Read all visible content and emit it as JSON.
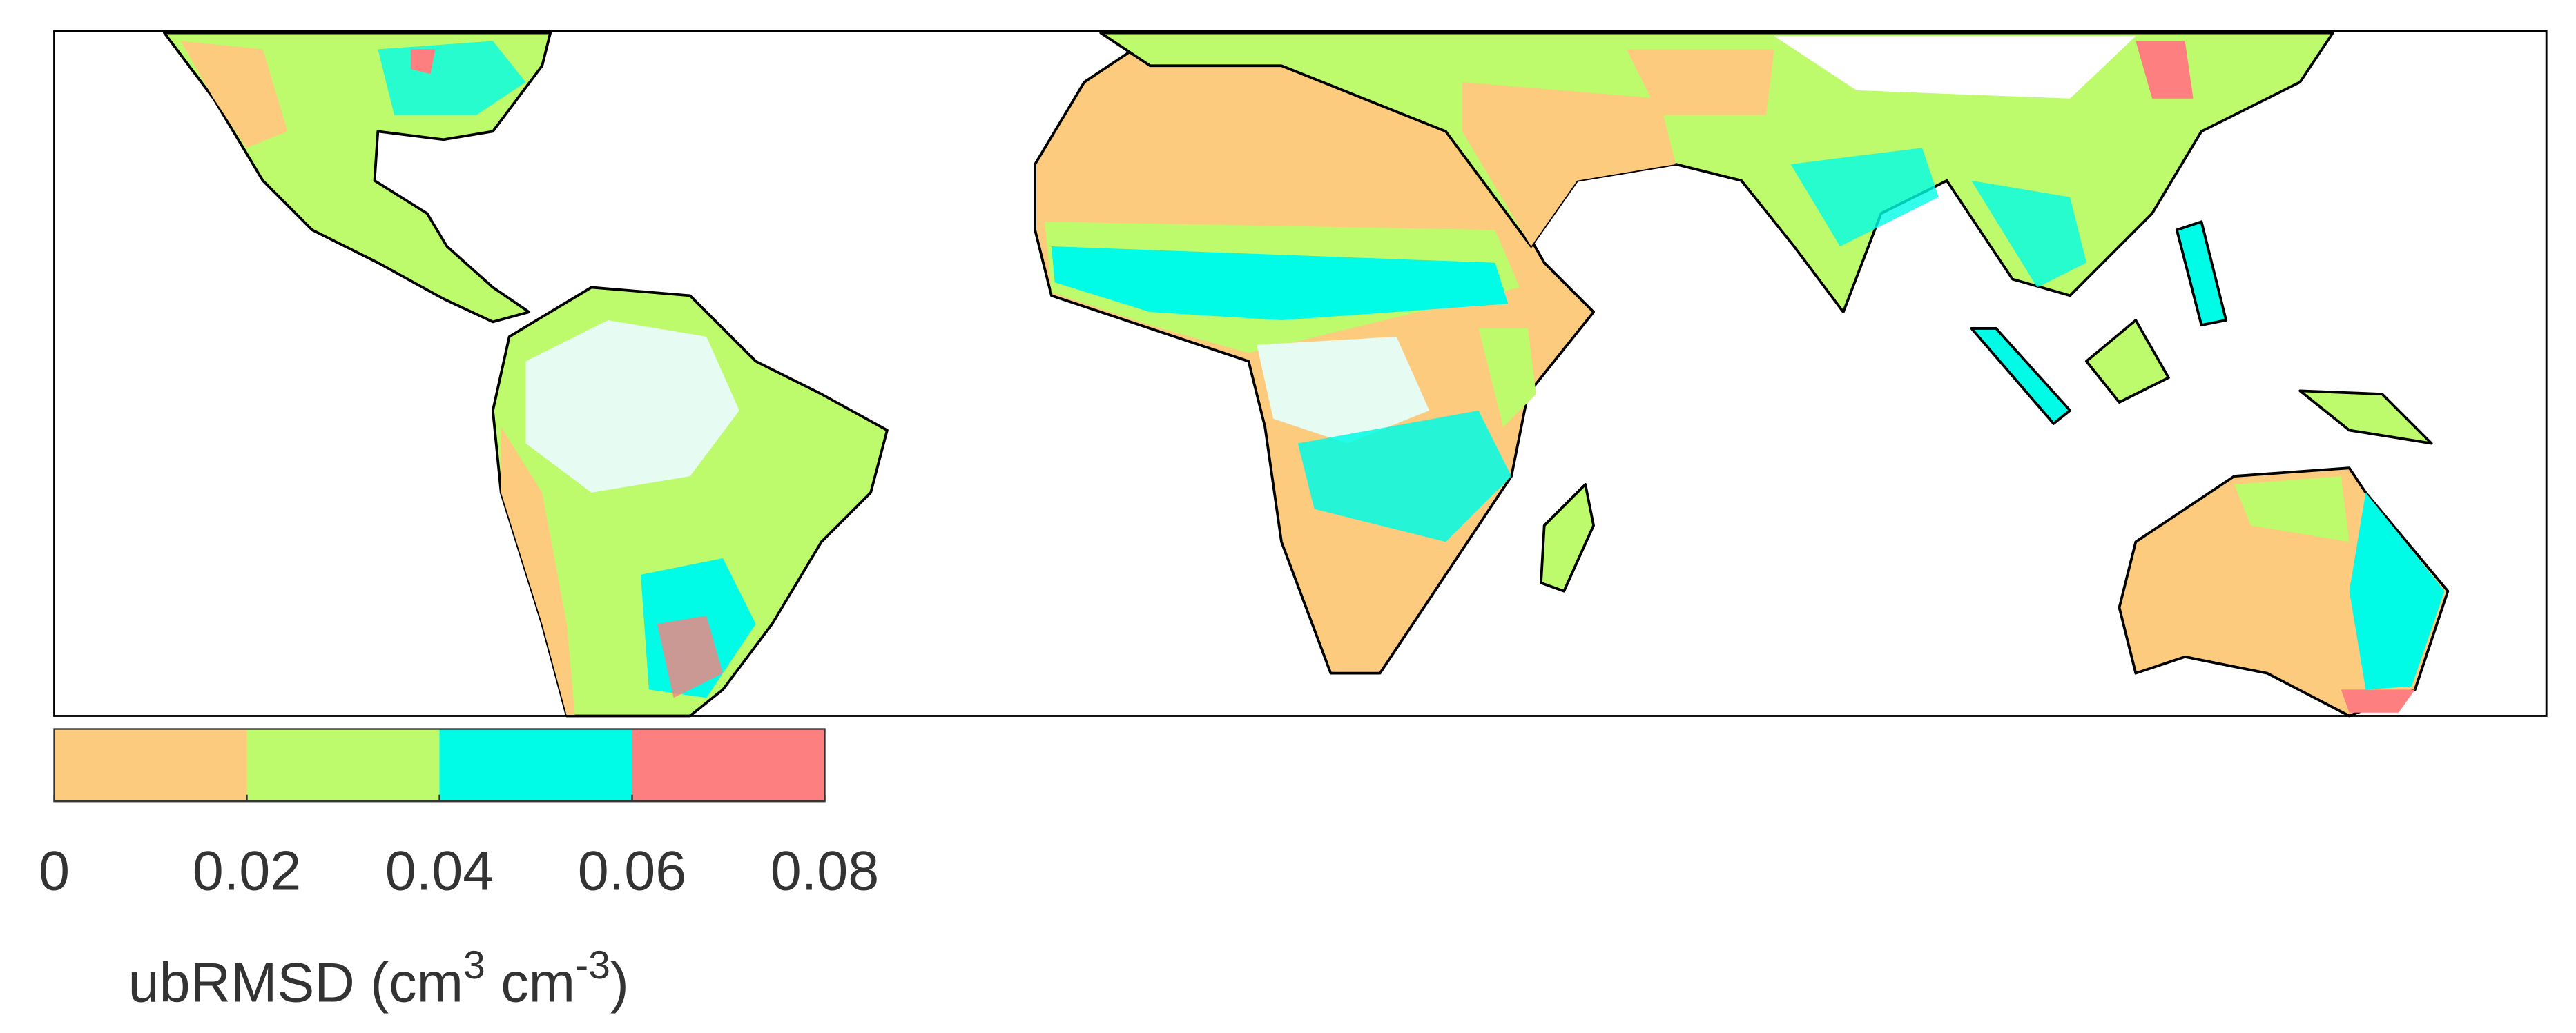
{
  "colorbar": {
    "ticks": [
      0,
      0.02,
      0.04,
      0.06,
      0.08
    ],
    "colors": [
      "#fdcb7e",
      "#bdfb6c",
      "#00fce6",
      "#fd7f80"
    ],
    "label": [
      "ubRMSD (cm",
      "3",
      " cm",
      "-3",
      ")"
    ]
  }
}
